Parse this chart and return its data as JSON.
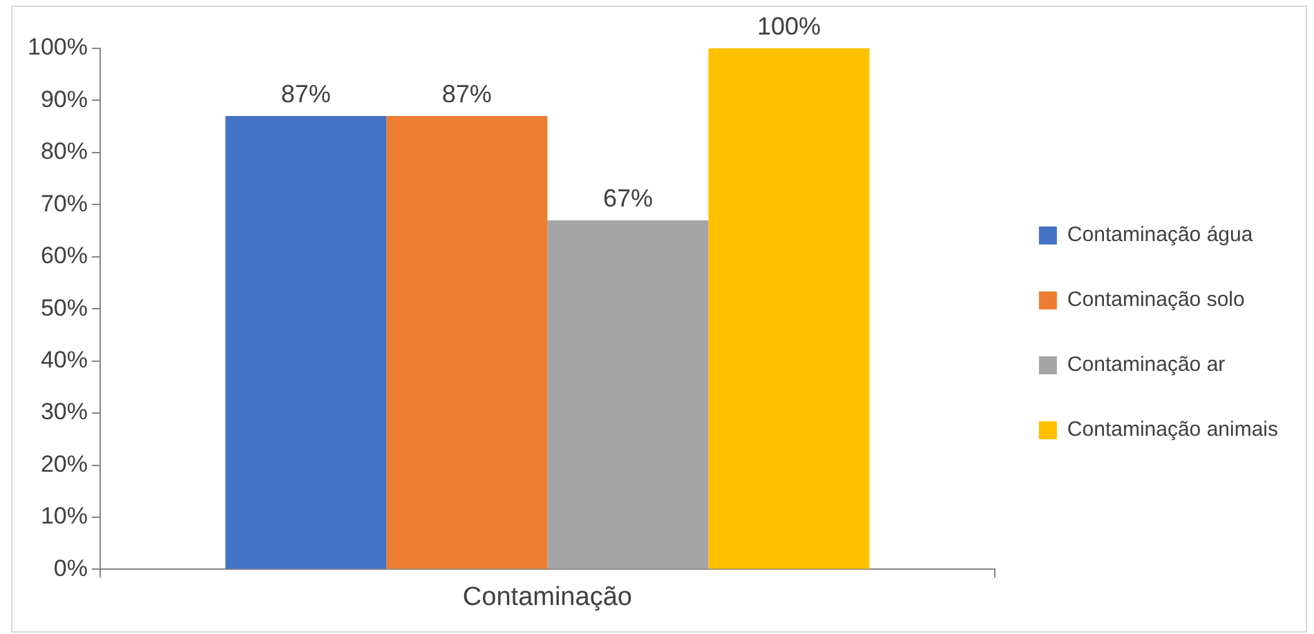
{
  "chart_data": {
    "type": "bar",
    "categories": [
      "Contaminação"
    ],
    "series": [
      {
        "name": "Contaminação água",
        "color": "#4472c4",
        "values": [
          87
        ],
        "value_labels": [
          "87%"
        ]
      },
      {
        "name": "Contaminação solo",
        "color": "#ed7d31",
        "values": [
          87
        ],
        "value_labels": [
          "87%"
        ]
      },
      {
        "name": "Contaminação ar",
        "color": "#a5a5a5",
        "values": [
          67
        ],
        "value_labels": [
          "67%"
        ]
      },
      {
        "name": "Contaminação animais",
        "color": "#ffc000",
        "values": [
          100
        ],
        "value_labels": [
          "100%"
        ]
      }
    ],
    "ylim": [
      0,
      100
    ],
    "yticks": [
      {
        "value": 0,
        "label": "0%"
      },
      {
        "value": 10,
        "label": "10%"
      },
      {
        "value": 20,
        "label": "20%"
      },
      {
        "value": 30,
        "label": "30%"
      },
      {
        "value": 40,
        "label": "40%"
      },
      {
        "value": 50,
        "label": "50%"
      },
      {
        "value": 60,
        "label": "60%"
      },
      {
        "value": 70,
        "label": "70%"
      },
      {
        "value": 80,
        "label": "80%"
      },
      {
        "value": 90,
        "label": "90%"
      },
      {
        "value": 100,
        "label": "100%"
      }
    ],
    "grid": false,
    "legend": "right"
  }
}
